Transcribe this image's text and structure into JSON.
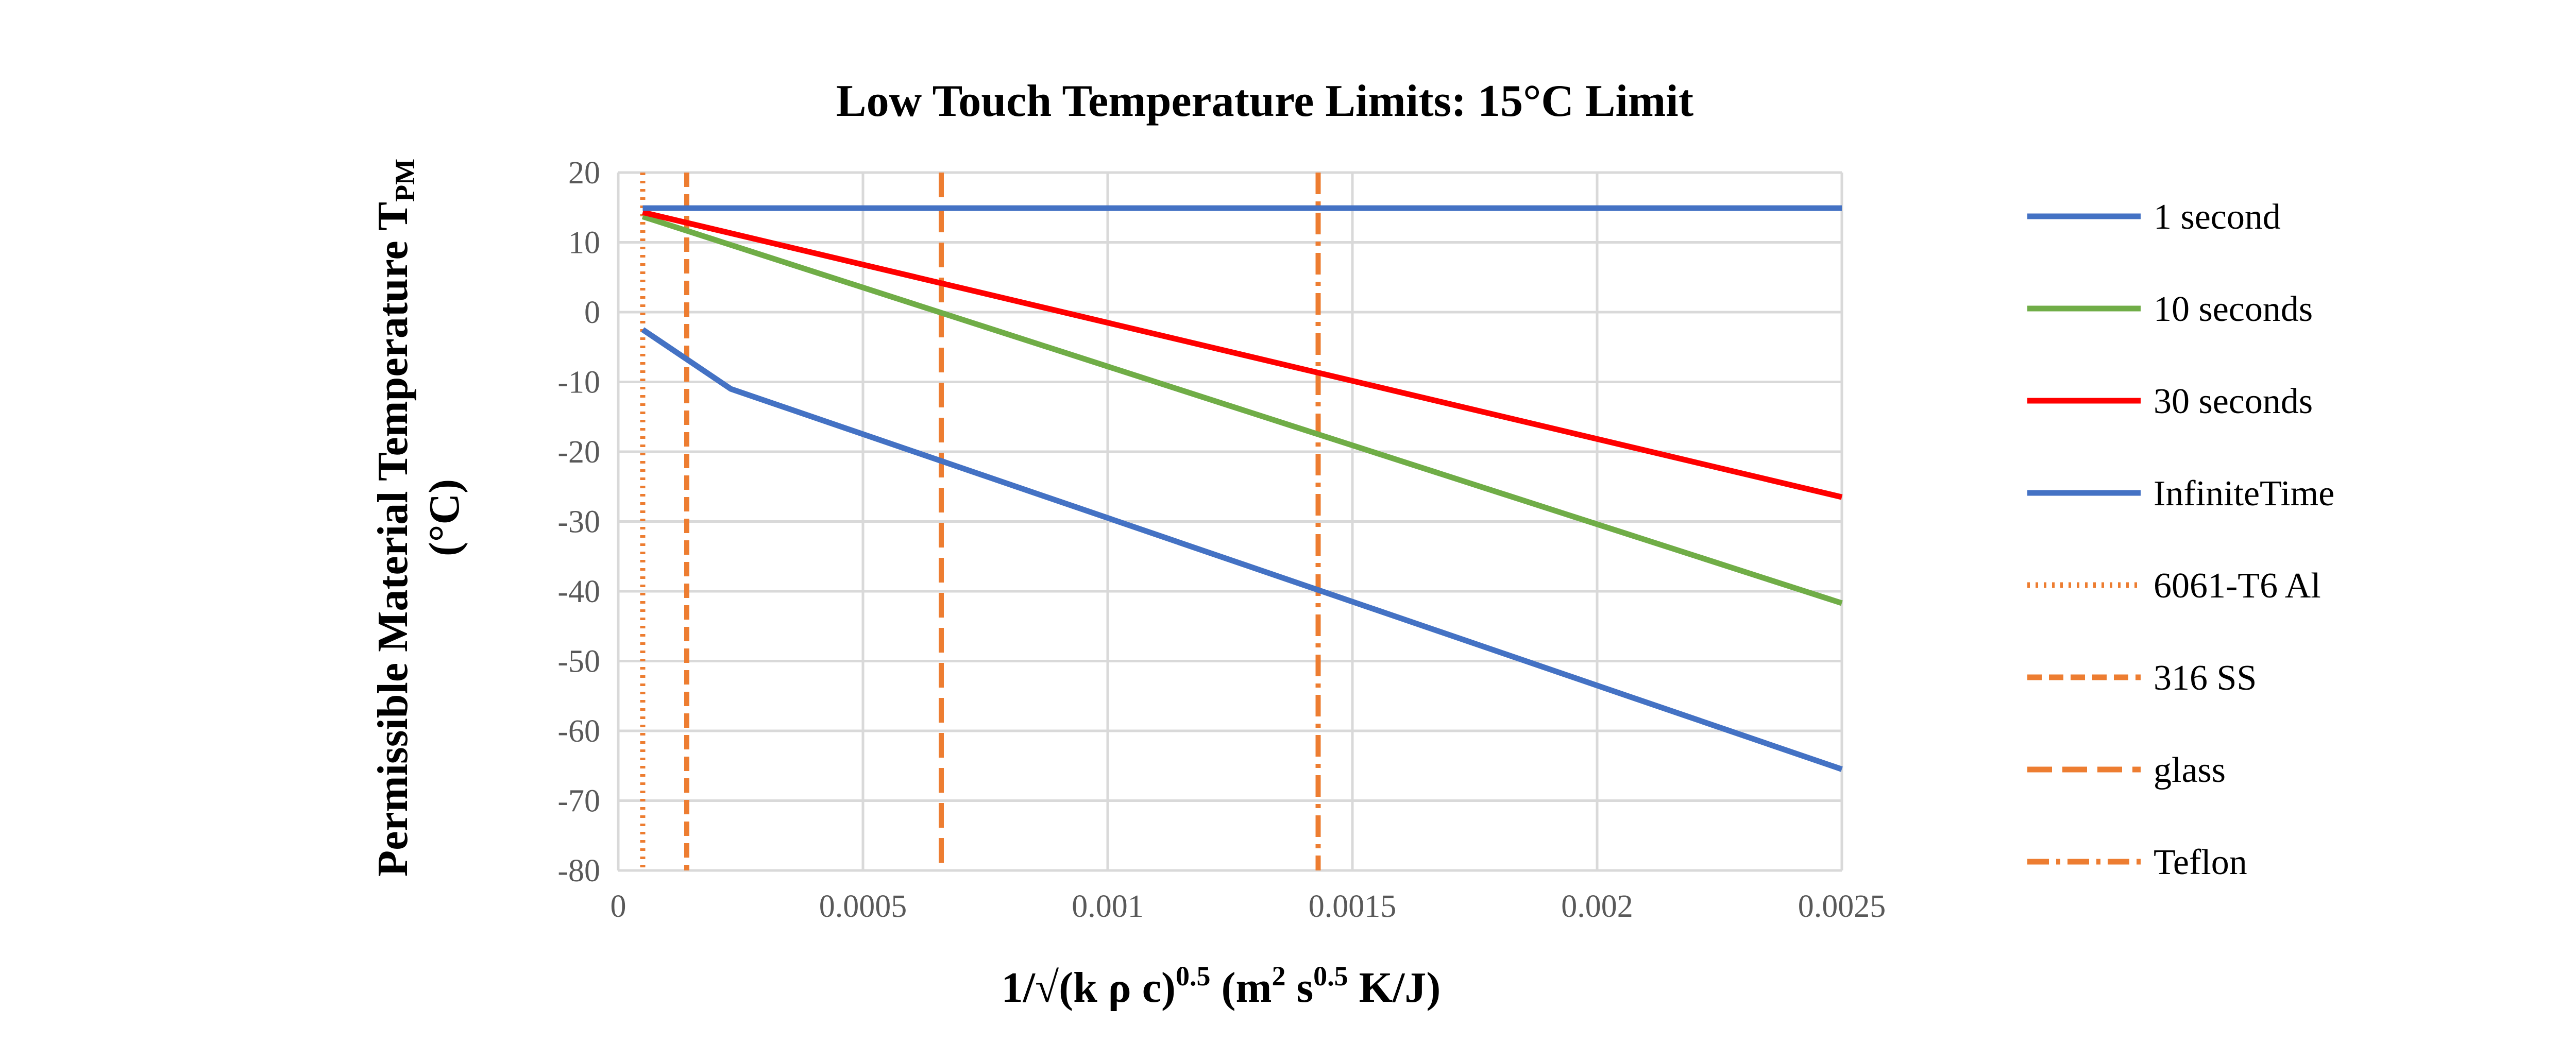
{
  "chart_data": {
    "type": "line",
    "title": "Low Touch Temperature Limits: 15°C Limit",
    "xlabel": "1/√(k ρ c)",
    "xlabel_exp": "0.5",
    "xlabel_units": " (m",
    "xlabel_units_exp1": "2",
    "xlabel_units_mid": " s",
    "xlabel_units_exp2": "0.5",
    "xlabel_units_end": " K/J)",
    "ylabel_line1": "Permissible Material Temperature T",
    "ylabel_sub": "PM",
    "ylabel_line2": "(°C)",
    "xlim": [
      0,
      0.0025
    ],
    "ylim": [
      -80,
      20
    ],
    "x_ticks": [
      "0",
      "0.0005",
      "0.001",
      "0.0015",
      "0.002",
      "0.0025"
    ],
    "y_ticks": [
      "20",
      "10",
      "0",
      "-10",
      "-20",
      "-30",
      "-40",
      "-50",
      "-60",
      "-70",
      "-80"
    ],
    "grid": true,
    "legend_position": "right",
    "series": [
      {
        "name": "1 second",
        "color": "#4472c4",
        "style": "solid",
        "x": [
          5e-05,
          0.00023,
          0.0025
        ],
        "y": [
          -2.5,
          -11,
          -65.5
        ]
      },
      {
        "name": "10 seconds",
        "color": "#70ad47",
        "style": "solid",
        "x": [
          5e-05,
          0.0025
        ],
        "y": [
          13.7,
          -41.7
        ]
      },
      {
        "name": "30 seconds",
        "color": "#ff0000",
        "style": "solid",
        "x": [
          5e-05,
          0.0025
        ],
        "y": [
          14.3,
          -26.5
        ]
      },
      {
        "name": "InfiniteTime",
        "color": "#4472c4",
        "style": "solid",
        "x": [
          5e-05,
          0.0025
        ],
        "y": [
          14.9,
          14.9
        ]
      }
    ],
    "materials": [
      {
        "name": "6061-T6 Al",
        "color": "#ed7d31",
        "style": "dotted",
        "x": 5e-05
      },
      {
        "name": "316 SS",
        "color": "#ed7d31",
        "style": "short-dash",
        "x": 0.00014
      },
      {
        "name": "glass",
        "color": "#ed7d31",
        "style": "long-dash",
        "x": 0.00066
      },
      {
        "name": "Teflon",
        "color": "#ed7d31",
        "style": "dash-dot",
        "x": 0.00143
      }
    ]
  }
}
